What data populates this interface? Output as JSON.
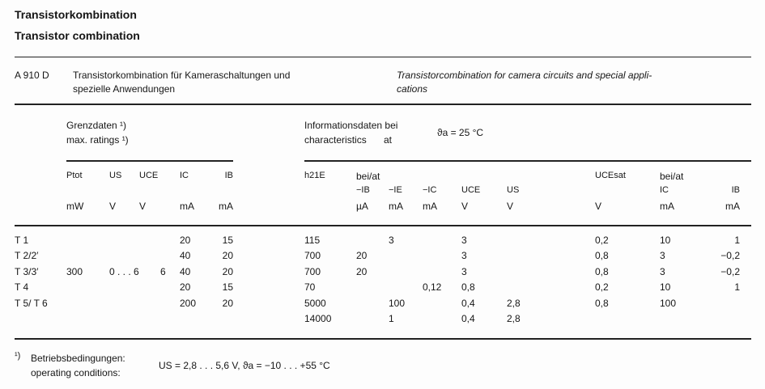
{
  "title_de": "Transistorkombination",
  "title_en": "Transistor combination",
  "desc": {
    "type": "A 910 D",
    "de_line1": "Transistorkombination für Kameraschaltungen und",
    "de_line2": "spezielle Anwendungen",
    "en_line1": "Transistorcombination for camera circuits and special appli-",
    "en_line2": "cations"
  },
  "group_left": {
    "line1": "Grenzdaten ¹)",
    "line2": "max. ratings ¹)"
  },
  "group_right": {
    "line1": "Informationsdaten bei",
    "line2": "characteristics",
    "at": "at",
    "cond": "ϑa = 25 °C"
  },
  "headers": [
    {
      "sym": "",
      "unit": ""
    },
    {
      "sym": "Ptot",
      "unit": "mW"
    },
    {
      "sym": "US",
      "unit": "V"
    },
    {
      "sym": "UCE",
      "unit": "V"
    },
    {
      "sym": "IC",
      "unit": "mA"
    },
    {
      "sym": "IB",
      "unit": "mA"
    },
    {
      "sym": "h21E",
      "unit": ""
    },
    {
      "sym": "−IB",
      "unit": "µA",
      "pre": "bei/at"
    },
    {
      "sym": "−IE",
      "unit": "mA"
    },
    {
      "sym": "−IC",
      "unit": "mA"
    },
    {
      "sym": "UCE",
      "unit": "V"
    },
    {
      "sym": "US",
      "unit": "V"
    },
    {
      "sym": "UCEsat",
      "unit": "V"
    },
    {
      "sym": "IC",
      "unit": "mA",
      "pre": "bei/at"
    },
    {
      "sym": "IB",
      "unit": "mA"
    }
  ],
  "rows": [
    [
      "T 1",
      "",
      "",
      "",
      "20",
      "15",
      "115",
      "",
      "3",
      "",
      "3",
      "",
      "0,2",
      "10",
      "1"
    ],
    [
      "T 2/2′",
      "",
      "",
      "",
      "40",
      "20",
      "700",
      "20",
      "",
      "",
      "3",
      "",
      "0,8",
      "3",
      "−0,2"
    ],
    [
      "T 3/3′",
      "300",
      "0 . . . 6",
      "6",
      "40",
      "20",
      "700",
      "20",
      "",
      "",
      "3",
      "",
      "0,8",
      "3",
      "−0,2"
    ],
    [
      "T 4",
      "",
      "",
      "",
      "20",
      "15",
      "70",
      "",
      "",
      "0,12",
      "0,8",
      "",
      "0,2",
      "10",
      "1"
    ],
    [
      "T 5/ T 6",
      "",
      "",
      "",
      "200",
      "20",
      "5000",
      "",
      "100",
      "",
      "0,4",
      "2,8",
      "0,8",
      "100",
      ""
    ],
    [
      "",
      "",
      "",
      "",
      "",
      "",
      "14000",
      "",
      "1",
      "",
      "0,4",
      "2,8",
      "",
      "",
      ""
    ]
  ],
  "footnote": {
    "mark": "¹)",
    "de": "Betriebsbedingungen:",
    "en": "operating conditions:",
    "formula": "US = 2,8 . . . 5,6 V,  ϑa = −10 . . . +55 °C"
  }
}
